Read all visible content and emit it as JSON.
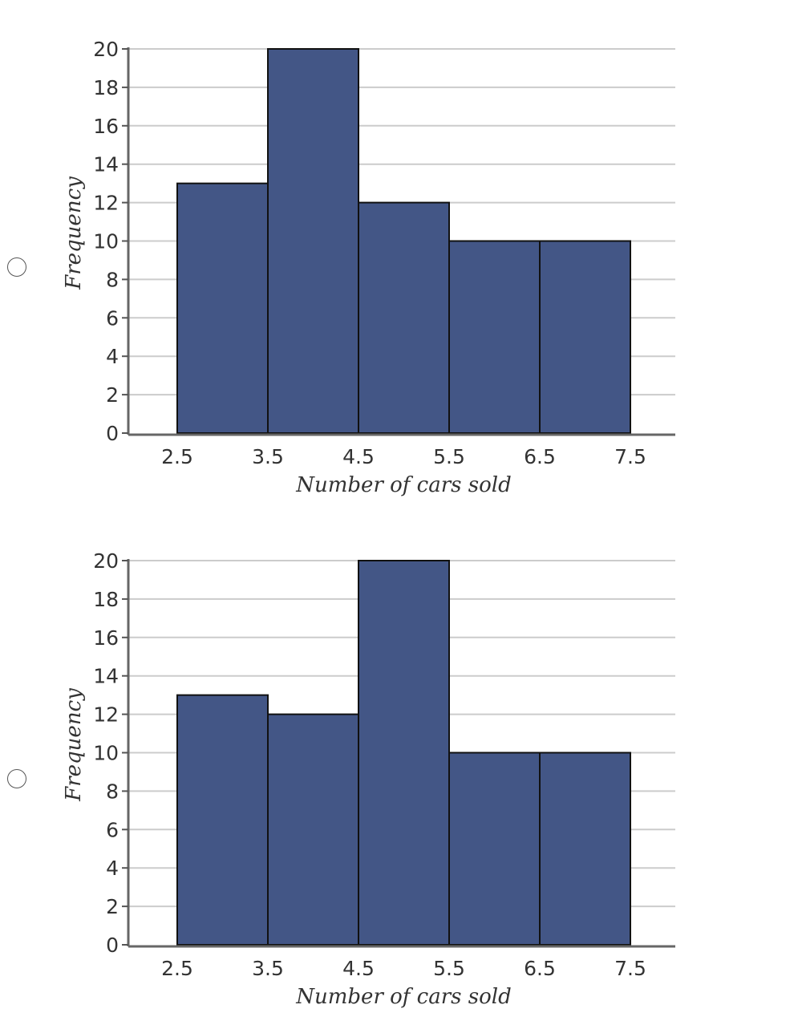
{
  "options": [
    {
      "radio_selected": false
    },
    {
      "radio_selected": false
    }
  ],
  "chart_data": [
    {
      "type": "bar",
      "bins": [
        [
          2.5,
          3.5
        ],
        [
          3.5,
          4.5
        ],
        [
          4.5,
          5.5
        ],
        [
          5.5,
          6.5
        ],
        [
          6.5,
          7.5
        ]
      ],
      "values": [
        13,
        20,
        12,
        10,
        10
      ],
      "x_ticks": [
        "2.5",
        "3.5",
        "4.5",
        "5.5",
        "6.5",
        "7.5"
      ],
      "y_ticks": [
        "0",
        "2",
        "4",
        "6",
        "8",
        "10",
        "12",
        "14",
        "16",
        "18",
        "20"
      ],
      "xlabel": "Number of cars sold",
      "ylabel": "Frequency",
      "xlim": [
        2.5,
        7.5
      ],
      "ylim": [
        0,
        20
      ],
      "grid": true,
      "bar_color": "#435686"
    },
    {
      "type": "bar",
      "bins": [
        [
          2.5,
          3.5
        ],
        [
          3.5,
          4.5
        ],
        [
          4.5,
          5.5
        ],
        [
          5.5,
          6.5
        ],
        [
          6.5,
          7.5
        ]
      ],
      "values": [
        13,
        12,
        20,
        10,
        10
      ],
      "x_ticks": [
        "2.5",
        "3.5",
        "4.5",
        "5.5",
        "6.5",
        "7.5"
      ],
      "y_ticks": [
        "0",
        "2",
        "4",
        "6",
        "8",
        "10",
        "12",
        "14",
        "16",
        "18",
        "20"
      ],
      "xlabel": "Number of cars sold",
      "ylabel": "Frequency",
      "xlim": [
        2.5,
        7.5
      ],
      "ylim": [
        0,
        20
      ],
      "grid": true,
      "bar_color": "#435686"
    }
  ]
}
